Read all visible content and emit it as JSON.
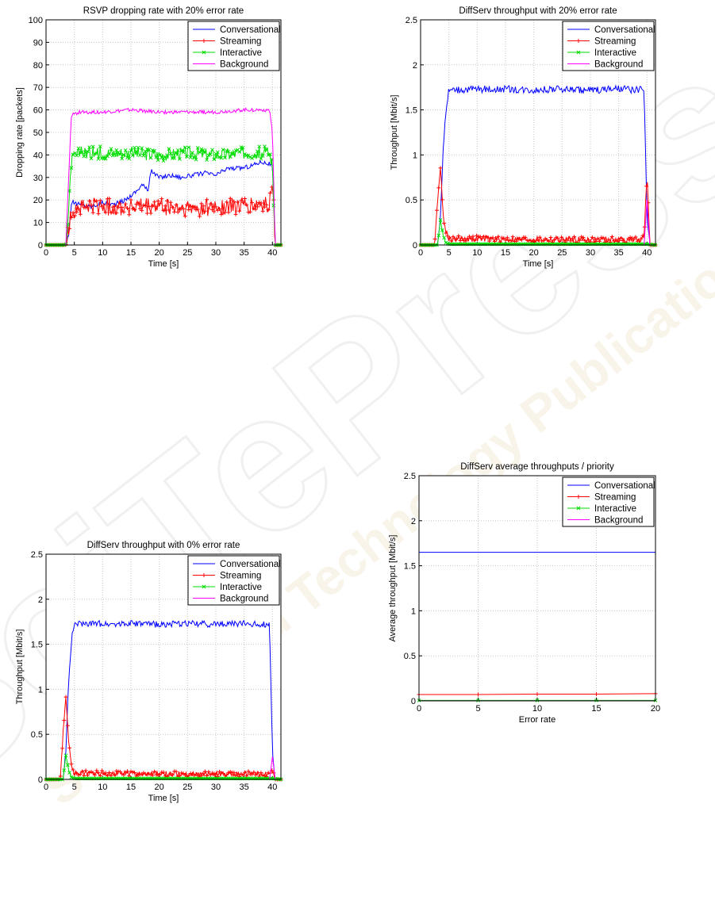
{
  "watermark": {
    "brand": "SciTePress",
    "tagline": "Science and Technology Publications",
    "colors": [
      "#e9e9e9",
      "#f3e6cc",
      "#f0d9a8"
    ]
  },
  "legend_labels": [
    "Conversational",
    "Streaming",
    "Interactive",
    "Background"
  ],
  "colors": {
    "Conversational": "#0000ff",
    "Streaming": "#ff0000",
    "Interactive": "#00dd00",
    "Background": "#ff00ff",
    "grid": "#c8c8c8"
  },
  "chart_data": [
    {
      "type": "line",
      "title": "RSVP dropping rate with 20% error rate",
      "xlabel": "Time [s]",
      "ylabel": "Dropping rate [packets]",
      "xlim": [
        0,
        41.5
      ],
      "ylim": [
        0,
        100
      ],
      "xticks": [
        0,
        5,
        10,
        15,
        20,
        25,
        30,
        35,
        40
      ],
      "yticks": [
        0,
        10,
        20,
        30,
        40,
        50,
        60,
        70,
        80,
        90,
        100
      ],
      "grid": true,
      "legend": "top-right",
      "series": [
        {
          "name": "Conversational",
          "marker": "none",
          "x": [
            0,
            3.5,
            4,
            4.5,
            6,
            8,
            10,
            12,
            14,
            15,
            16,
            17,
            18,
            18.5,
            20,
            22,
            24,
            26,
            28,
            30,
            32,
            34,
            36,
            38,
            39.5,
            40,
            40.5,
            41.5
          ],
          "y": [
            0,
            0,
            5,
            19,
            18,
            17,
            19,
            18,
            20,
            22,
            24,
            27,
            24,
            33,
            30,
            31,
            30,
            31,
            32,
            31,
            34,
            34,
            35,
            37,
            36,
            35,
            0,
            0
          ],
          "noise": 1.0
        },
        {
          "name": "Streaming",
          "marker": "plus",
          "x": [
            0,
            3.5,
            4,
            4.5,
            6,
            10,
            15,
            20,
            25,
            30,
            35,
            39.5,
            40,
            40.5,
            41.5
          ],
          "y": [
            0,
            0,
            6,
            15,
            17,
            17,
            17,
            17,
            16,
            17,
            17,
            18,
            30,
            0,
            0
          ],
          "noise": 4.0
        },
        {
          "name": "Interactive",
          "marker": "x",
          "x": [
            0,
            3.5,
            4,
            4.5,
            6,
            10,
            15,
            20,
            25,
            30,
            35,
            39.5,
            40,
            40.5,
            41.5
          ],
          "y": [
            0,
            0,
            15,
            38,
            41,
            41,
            41,
            40,
            41,
            40,
            41,
            41,
            35,
            0,
            0
          ],
          "noise": 2.8
        },
        {
          "name": "Background",
          "marker": "none",
          "x": [
            0,
            3.5,
            4,
            4.5,
            6,
            10,
            15,
            20,
            25,
            30,
            35,
            39.5,
            40,
            40.5,
            41.5
          ],
          "y": [
            0,
            0,
            30,
            58,
            59,
            59,
            60,
            59,
            59,
            59,
            60,
            60,
            50,
            0,
            0
          ],
          "noise": 0.8
        }
      ]
    },
    {
      "type": "line",
      "title": "DiffServ throughput with 20% error rate",
      "xlabel": "Time [s]",
      "ylabel": "Throughput [Mbit/s]",
      "xlim": [
        0,
        41.5
      ],
      "ylim": [
        0,
        2.5
      ],
      "xticks": [
        0,
        5,
        10,
        15,
        20,
        25,
        30,
        35,
        40
      ],
      "yticks": [
        0,
        0.5,
        1,
        1.5,
        2,
        2.5
      ],
      "grid": true,
      "legend": "top-right",
      "series": [
        {
          "name": "Conversational",
          "marker": "none",
          "x": [
            0,
            3,
            3.5,
            4,
            4.5,
            5,
            10,
            15,
            20,
            25,
            30,
            35,
            39.5,
            40,
            40.5,
            41.5
          ],
          "y": [
            0,
            0,
            0.3,
            1.1,
            1.5,
            1.72,
            1.73,
            1.73,
            1.72,
            1.73,
            1.72,
            1.73,
            1.72,
            0.3,
            0,
            0
          ],
          "noise": 0.04
        },
        {
          "name": "Streaming",
          "marker": "plus",
          "x": [
            0,
            2.5,
            3,
            3.5,
            4,
            4.5,
            5,
            10,
            20,
            30,
            39,
            39.5,
            40,
            40.5,
            41.5
          ],
          "y": [
            0,
            0,
            0.5,
            0.9,
            0.3,
            0.15,
            0.07,
            0.07,
            0.06,
            0.06,
            0.06,
            0.1,
            0.8,
            0,
            0
          ],
          "noise": 0.035
        },
        {
          "name": "Interactive",
          "marker": "x",
          "x": [
            0,
            3,
            3.5,
            4,
            4.5,
            5,
            40,
            41.5
          ],
          "y": [
            0,
            0,
            0.28,
            0.1,
            0.02,
            0.01,
            0.01,
            0
          ],
          "noise": 0.004
        },
        {
          "name": "Background",
          "marker": "none",
          "x": [
            0,
            39.5,
            40,
            40.5,
            41.5
          ],
          "y": [
            0,
            0,
            0.5,
            0,
            0
          ],
          "noise": 0
        }
      ]
    },
    {
      "type": "line",
      "title": "DiffServ throughput with 0% error rate",
      "xlabel": "Time [s]",
      "ylabel": "Throughput [Mbit/s]",
      "xlim": [
        0,
        41.5
      ],
      "ylim": [
        0,
        2.5
      ],
      "xticks": [
        0,
        5,
        10,
        15,
        20,
        25,
        30,
        35,
        40
      ],
      "yticks": [
        0,
        0.5,
        1,
        1.5,
        2,
        2.5
      ],
      "grid": true,
      "legend": "top-right",
      "series": [
        {
          "name": "Conversational",
          "marker": "none",
          "x": [
            0,
            3,
            3.5,
            4,
            4.5,
            5,
            10,
            15,
            20,
            25,
            30,
            35,
            39.5,
            40,
            40.5,
            41.5
          ],
          "y": [
            0,
            0,
            0.3,
            1.1,
            1.55,
            1.72,
            1.73,
            1.73,
            1.72,
            1.73,
            1.72,
            1.73,
            1.72,
            0.3,
            0,
            0
          ],
          "noise": 0.035
        },
        {
          "name": "Streaming",
          "marker": "plus",
          "x": [
            0,
            2.5,
            3,
            3.5,
            4,
            4.5,
            5,
            10,
            20,
            30,
            39,
            39.5,
            40,
            40.5,
            41.5
          ],
          "y": [
            0,
            0,
            0.5,
            0.9,
            0.4,
            0.15,
            0.07,
            0.07,
            0.06,
            0.06,
            0.06,
            0.08,
            0.1,
            0,
            0
          ],
          "noise": 0.03
        },
        {
          "name": "Interactive",
          "marker": "x",
          "x": [
            0,
            3,
            3.5,
            4,
            4.5,
            5,
            40,
            41.5
          ],
          "y": [
            0,
            0,
            0.27,
            0.1,
            0.02,
            0.01,
            0.01,
            0
          ],
          "noise": 0.004
        },
        {
          "name": "Background",
          "marker": "none",
          "x": [
            0,
            39.5,
            40,
            40.5,
            41.5
          ],
          "y": [
            0,
            0,
            0.25,
            0,
            0
          ],
          "noise": 0
        }
      ]
    },
    {
      "type": "line",
      "title": "DiffServ average throughputs / priority",
      "xlabel": "Error rate",
      "ylabel": "Average throughput [Mbit/s]",
      "xlim": [
        0,
        20
      ],
      "ylim": [
        0,
        2.5
      ],
      "xticks": [
        0,
        5,
        10,
        15,
        20
      ],
      "yticks": [
        0,
        0.5,
        1,
        1.5,
        2,
        2.5
      ],
      "grid": true,
      "legend": "top-right",
      "series": [
        {
          "name": "Conversational",
          "marker": "none",
          "x": [
            0,
            5,
            10,
            15,
            20
          ],
          "y": [
            1.65,
            1.65,
            1.65,
            1.65,
            1.65
          ],
          "noise": 0
        },
        {
          "name": "Streaming",
          "marker": "plus",
          "x": [
            0,
            5,
            10,
            15,
            20
          ],
          "y": [
            0.07,
            0.07,
            0.075,
            0.075,
            0.08
          ],
          "noise": 0
        },
        {
          "name": "Interactive",
          "marker": "x",
          "x": [
            0,
            5,
            10,
            15,
            20
          ],
          "y": [
            0.005,
            0.005,
            0.005,
            0.005,
            0.005
          ],
          "noise": 0
        },
        {
          "name": "Background",
          "marker": "none",
          "x": [
            0,
            5,
            10,
            15,
            20
          ],
          "y": [
            0.001,
            0.001,
            0.001,
            0.001,
            0.001
          ],
          "noise": 0
        }
      ]
    }
  ]
}
